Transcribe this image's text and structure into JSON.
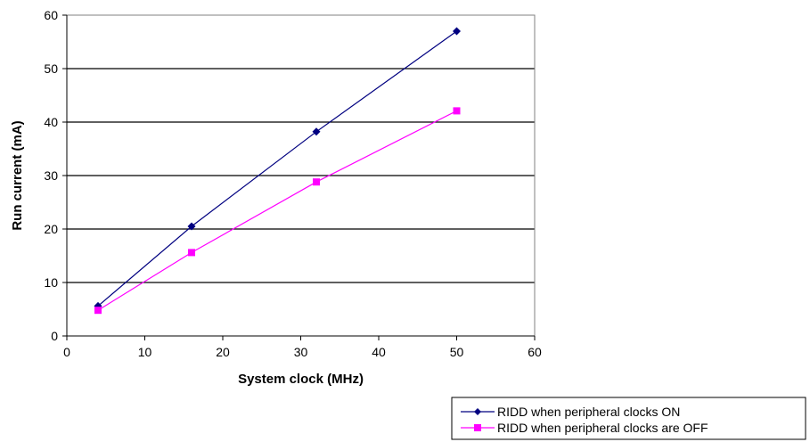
{
  "chart_data": {
    "type": "line",
    "title": "",
    "xlabel": "System clock (MHz)",
    "ylabel": "Run current (mA)",
    "xlim": [
      0,
      60
    ],
    "ylim": [
      0,
      60
    ],
    "xticks": [
      0,
      10,
      20,
      30,
      40,
      50,
      60
    ],
    "yticks": [
      0,
      10,
      20,
      30,
      40,
      50,
      60
    ],
    "grid": "horizontal",
    "legend_position": "bottom-right",
    "series": [
      {
        "name": "RIDD when peripheral clocks ON",
        "color": "#000080",
        "marker": "diamond",
        "x": [
          4,
          16,
          32,
          50
        ],
        "y": [
          5.6,
          20.5,
          38.2,
          57.0
        ]
      },
      {
        "name": "RIDD when peripheral clocks are OFF",
        "color": "#ff00ff",
        "marker": "square",
        "x": [
          4,
          16,
          32,
          50
        ],
        "y": [
          4.8,
          15.6,
          28.8,
          42.1
        ]
      }
    ]
  }
}
